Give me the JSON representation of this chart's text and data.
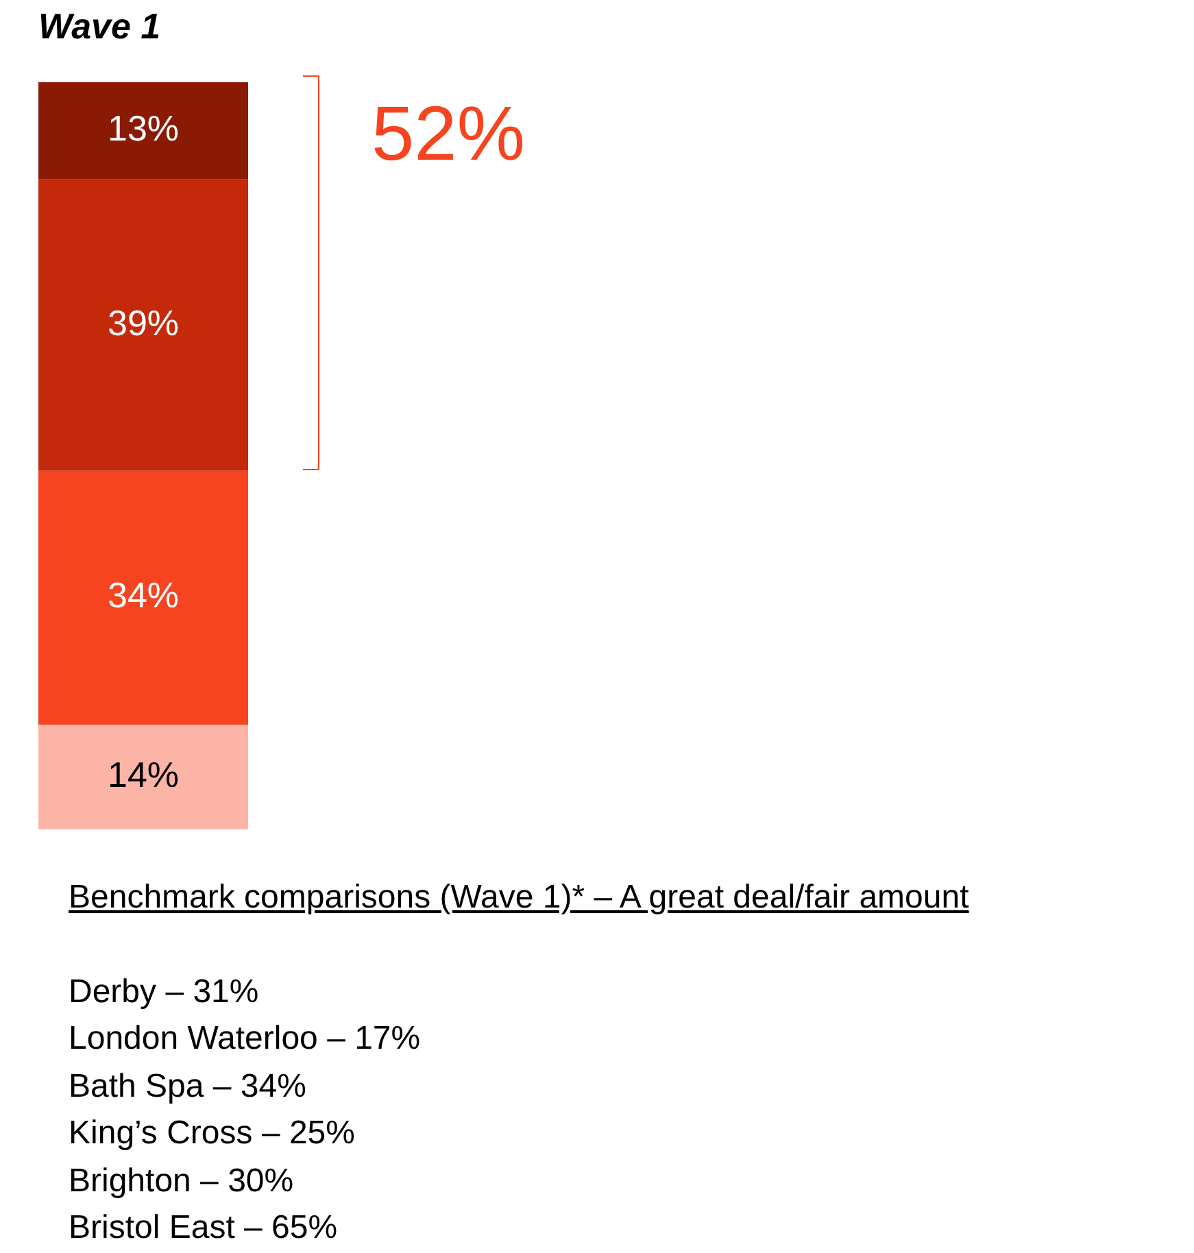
{
  "chart_data": {
    "type": "bar",
    "title": "Wave 1",
    "categories": [
      null
    ],
    "stacked": true,
    "legend": false,
    "series": [
      {
        "color": "#fbb4a5",
        "values": [
          14
        ],
        "value_labels": [
          "14%"
        ]
      },
      {
        "color": "#f5441f",
        "values": [
          34
        ],
        "value_labels": [
          "34%"
        ]
      },
      {
        "color": "#c4290a",
        "values": [
          39
        ],
        "value_labels": [
          "39%"
        ]
      },
      {
        "color": "#8b1a05",
        "values": [
          13
        ],
        "value_labels": [
          "13%"
        ]
      }
    ],
    "annotations": [
      "52%",
      "Benchmark comparisons (Wave 1)* – A great deal/fair amount",
      "Derby – 31%",
      "London Waterloo – 17%",
      "Bath Spa – 34%",
      "King’s Cross – 25%",
      "Brighton – 30%",
      "Bristol East – 65%"
    ]
  }
}
